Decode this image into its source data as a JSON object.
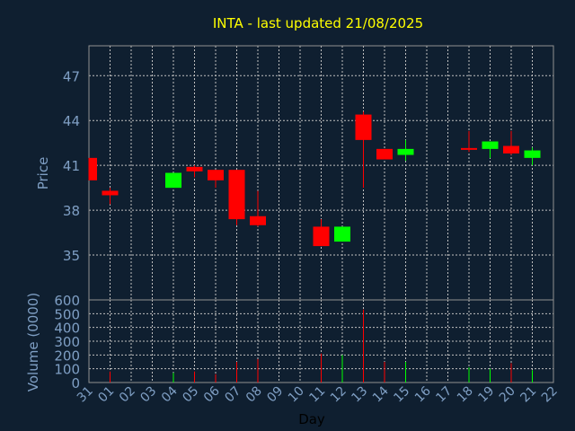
{
  "chart_data": {
    "type": "candlestick",
    "title": "INTA - last updated 21/08/2025",
    "xlabel": "Day",
    "price_panel": {
      "ylabel": "Price",
      "yticks": [
        35,
        38,
        41,
        44,
        47
      ],
      "ylim": [
        32,
        49
      ],
      "grid": true
    },
    "volume_panel": {
      "ylabel": "Volume (0000)",
      "yticks": [
        0,
        100,
        200,
        300,
        400,
        500,
        600
      ],
      "ylim": [
        0,
        600
      ],
      "grid": true
    },
    "x_tick_labels": [
      "31",
      "01",
      "02",
      "03",
      "04",
      "05",
      "06",
      "07",
      "08",
      "09",
      "10",
      "11",
      "12",
      "13",
      "14",
      "15",
      "16",
      "17",
      "18",
      "19",
      "20",
      "21",
      "22"
    ],
    "colors": {
      "up": "#00ff00",
      "down": "#ff0000",
      "grid": "#c0c0c0",
      "axis_text": "#7f9fc4",
      "title": "#ffff00",
      "background": "#0f1f30"
    },
    "candles": [
      {
        "day": "31",
        "open": 41.5,
        "high": 41.5,
        "low": 40.0,
        "close": 40.0
      },
      {
        "day": "01",
        "open": 39.3,
        "high": 39.5,
        "low": 38.4,
        "close": 39.0
      },
      {
        "day": "04",
        "open": 39.5,
        "high": 40.5,
        "low": 39.5,
        "close": 40.5
      },
      {
        "day": "05",
        "open": 40.9,
        "high": 41.0,
        "low": 40.2,
        "close": 40.6
      },
      {
        "day": "06",
        "open": 40.7,
        "high": 40.7,
        "low": 39.5,
        "close": 40.0
      },
      {
        "day": "07",
        "open": 40.7,
        "high": 40.7,
        "low": 37.0,
        "close": 37.4
      },
      {
        "day": "08",
        "open": 37.6,
        "high": 39.3,
        "low": 36.9,
        "close": 37.0
      },
      {
        "day": "11",
        "open": 36.9,
        "high": 37.4,
        "low": 35.6,
        "close": 35.6
      },
      {
        "day": "12",
        "open": 35.9,
        "high": 36.9,
        "low": 35.9,
        "close": 36.9
      },
      {
        "day": "13",
        "open": 44.4,
        "high": 44.6,
        "low": 39.5,
        "close": 42.7
      },
      {
        "day": "14",
        "open": 42.1,
        "high": 42.1,
        "low": 41.4,
        "close": 41.4
      },
      {
        "day": "15",
        "open": 41.7,
        "high": 42.7,
        "low": 41.3,
        "close": 42.1
      },
      {
        "day": "18",
        "open": 42.1,
        "high": 43.3,
        "low": 41.9,
        "close": 42.1
      },
      {
        "day": "19",
        "open": 42.1,
        "high": 42.6,
        "low": 41.5,
        "close": 42.6
      },
      {
        "day": "20",
        "open": 42.3,
        "high": 43.3,
        "low": 41.7,
        "close": 41.8
      },
      {
        "day": "21",
        "open": 41.5,
        "high": 42.2,
        "low": 41.0,
        "close": 42.0
      }
    ],
    "volume": [
      {
        "day": "31",
        "value": 0,
        "dir": "down"
      },
      {
        "day": "01",
        "value": 80,
        "dir": "down"
      },
      {
        "day": "04",
        "value": 70,
        "dir": "up"
      },
      {
        "day": "05",
        "value": 80,
        "dir": "down"
      },
      {
        "day": "06",
        "value": 60,
        "dir": "down"
      },
      {
        "day": "07",
        "value": 150,
        "dir": "down"
      },
      {
        "day": "08",
        "value": 170,
        "dir": "down"
      },
      {
        "day": "11",
        "value": 210,
        "dir": "down"
      },
      {
        "day": "12",
        "value": 200,
        "dir": "up"
      },
      {
        "day": "13",
        "value": 530,
        "dir": "down"
      },
      {
        "day": "14",
        "value": 150,
        "dir": "down"
      },
      {
        "day": "15",
        "value": 150,
        "dir": "up"
      },
      {
        "day": "18",
        "value": 110,
        "dir": "up"
      },
      {
        "day": "19",
        "value": 100,
        "dir": "up"
      },
      {
        "day": "20",
        "value": 140,
        "dir": "down"
      },
      {
        "day": "21",
        "value": 90,
        "dir": "up"
      }
    ]
  }
}
